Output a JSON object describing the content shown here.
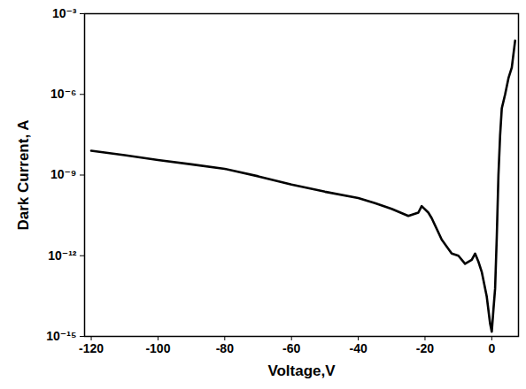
{
  "chart_data": {
    "type": "line",
    "x_label": "Voltage,V",
    "y_label": "Dark Current, A",
    "x": [
      -120,
      -110,
      -100,
      -90,
      -80,
      -70,
      -60,
      -50,
      -40,
      -35,
      -30,
      -25,
      -22,
      -21,
      -19,
      -18,
      -15,
      -12,
      -10,
      -8,
      -6,
      -5,
      -4,
      -3,
      -1.5,
      -0.5,
      0,
      0.5,
      1,
      1.5,
      2,
      2.5,
      3,
      4,
      5,
      6,
      7
    ],
    "series": [
      {
        "color": "#000000",
        "values": [
          8e-09,
          5.5e-09,
          3.6e-09,
          2.5e-09,
          1.7e-09,
          9e-10,
          4.4e-10,
          2.4e-10,
          1.4e-10,
          9e-11,
          5.5e-11,
          3e-11,
          4e-11,
          7e-11,
          4e-11,
          2.5e-11,
          4e-12,
          1.2e-12,
          1e-12,
          5e-13,
          7e-13,
          1.2e-12,
          6e-13,
          2.5e-13,
          3e-14,
          3e-15,
          1.5e-15,
          1e-14,
          6e-14,
          5e-12,
          1e-09,
          3e-08,
          3e-07,
          1e-06,
          4e-06,
          1e-05,
          0.0001
        ]
      }
    ],
    "log": "y",
    "xlim": [
      -122,
      8
    ],
    "xticks": [
      -120,
      -100,
      -80,
      -60,
      -40,
      -20,
      0
    ],
    "ylim": [
      1e-15,
      0.001
    ],
    "yticks": [
      {
        "value": 1e-15,
        "label": "10⁻¹⁵"
      },
      {
        "value": 1e-12,
        "label": "10⁻¹²"
      },
      {
        "value": 1e-09,
        "label": "10⁻⁹"
      },
      {
        "value": 1e-06,
        "label": "10⁻⁶"
      },
      {
        "value": 0.001,
        "label": "10⁻³"
      }
    ]
  }
}
